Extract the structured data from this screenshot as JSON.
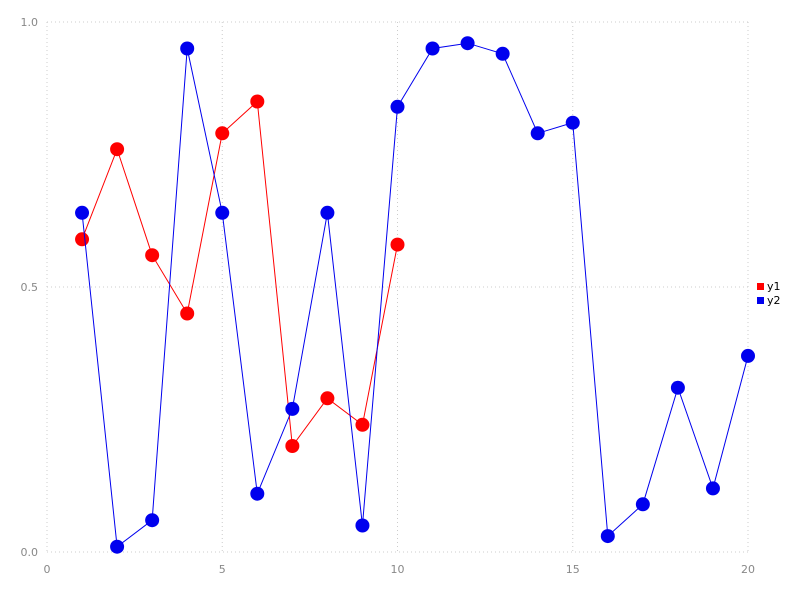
{
  "chart_data": {
    "type": "line",
    "title": "",
    "xlabel": "",
    "ylabel": "",
    "xlim": [
      0,
      20
    ],
    "ylim": [
      0,
      1
    ],
    "xticks": [
      0,
      5,
      10,
      15,
      20
    ],
    "xtick_labels": [
      "0",
      "5",
      "10",
      "15",
      "20"
    ],
    "yticks": [
      0,
      0.5,
      1
    ],
    "ytick_labels": [
      "0.0",
      "0.5",
      "1.0"
    ],
    "grid": "dotted",
    "grid_color": "#cccccc",
    "tick_color": "#888888",
    "legend_position": "right",
    "marker": "circle",
    "series": [
      {
        "name": "y1",
        "color": "#ff0000",
        "x": [
          1,
          2,
          3,
          4,
          5,
          6,
          7,
          8,
          9,
          10
        ],
        "y": [
          0.59,
          0.76,
          0.56,
          0.45,
          0.79,
          0.85,
          0.2,
          0.29,
          0.24,
          0.58
        ]
      },
      {
        "name": "y2",
        "color": "#0000ee",
        "x": [
          1,
          2,
          3,
          4,
          5,
          6,
          7,
          8,
          9,
          10,
          11,
          12,
          13,
          14,
          15,
          16,
          17,
          18,
          19,
          20
        ],
        "y": [
          0.64,
          0.01,
          0.06,
          0.95,
          0.64,
          0.11,
          0.27,
          0.64,
          0.05,
          0.84,
          0.95,
          0.96,
          0.94,
          0.79,
          0.81,
          0.03,
          0.09,
          0.31,
          0.12,
          0.37
        ]
      }
    ]
  }
}
